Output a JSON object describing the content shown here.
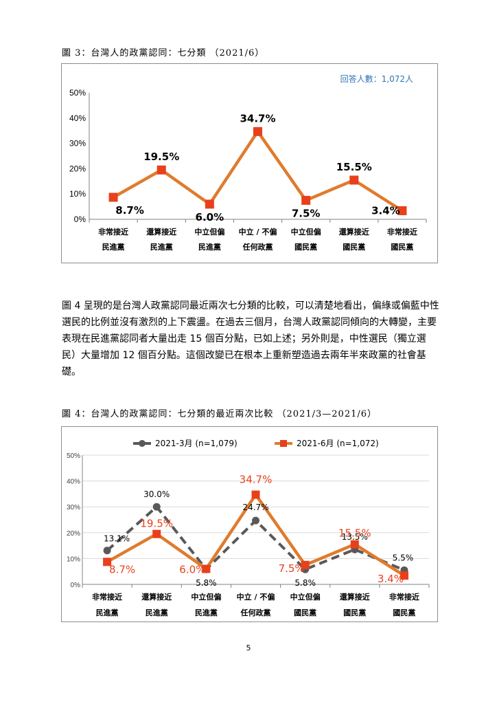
{
  "figure3": {
    "caption": "圖 3：台灣人的政黨認同：七分類 （2021/6）",
    "respondents": "回答人數：1,072人"
  },
  "figure4": {
    "caption": "圖 4：台灣人的政黨認同：七分類的最近兩次比較 （2021/3—2021/6）"
  },
  "paragraph": "圖 4 呈現的是台灣人政黨認同最近兩次七分類的比較，可以清楚地看出，偏綠或偏藍中性選民的比例並沒有激烈的上下震盪。在過去三個月，台灣人政黨認同傾向的大轉變，主要表現在民進黨認同者大量出走 15 個百分點，已如上述；另外則是，中性選民（獨立選民）大量增加 12 個百分點。這個改變已在根本上重新塑造過去兩年半來政黨的社會基礎。",
  "page_number": "5",
  "chart_data": [
    {
      "type": "line",
      "categories": [
        [
          "非常接近",
          "民進黨"
        ],
        [
          "還算接近",
          "民進黨"
        ],
        [
          "中立但偏",
          "民進黨"
        ],
        [
          "中立 / 不偏",
          "任何政黨"
        ],
        [
          "中立但偏",
          "國民黨"
        ],
        [
          "還算接近",
          "國民黨"
        ],
        [
          "非常接近",
          "國民黨"
        ]
      ],
      "yticks": [
        "0%",
        "10%",
        "20%",
        "30%",
        "40%",
        "50%"
      ],
      "ylim": [
        0,
        50
      ],
      "series": [
        {
          "values": [
            8.7,
            19.5,
            6.0,
            34.7,
            7.5,
            15.5,
            3.4
          ],
          "labels": [
            "8.7%",
            "19.5%",
            "6.0%",
            "34.7%",
            "7.5%",
            "15.5%",
            "3.4%"
          ],
          "color": "#E07B2C",
          "marker_color": "#E8401C"
        }
      ]
    },
    {
      "type": "line",
      "categories": [
        [
          "非常接近",
          "民進黨"
        ],
        [
          "還算接近",
          "民進黨"
        ],
        [
          "中立但偏",
          "民進黨"
        ],
        [
          "中立 / 不偏",
          "任何政黨"
        ],
        [
          "中立但偏",
          "國民黨"
        ],
        [
          "還算接近",
          "國民黨"
        ],
        [
          "非常接近",
          "國民黨"
        ]
      ],
      "yticks": [
        "0%",
        "10%",
        "20%",
        "30%",
        "40%",
        "50%"
      ],
      "ylim": [
        0,
        50
      ],
      "legend": "top",
      "series": [
        {
          "name": "2021-3月 (n=1,079)",
          "values": [
            13.1,
            30.0,
            5.8,
            24.7,
            5.8,
            13.5,
            5.5
          ],
          "labels": [
            "13.1%",
            "30.0%",
            "5.8%",
            "24.7%",
            "5.8%",
            "13.5%",
            "5.5%"
          ],
          "color": "#595959",
          "dashed": true
        },
        {
          "name": "2021-6月 (n=1,072)",
          "values": [
            8.7,
            19.5,
            6.0,
            34.7,
            7.5,
            15.5,
            3.4
          ],
          "labels": [
            "8.7%",
            "19.5%",
            "6.0%",
            "34.7%",
            "7.5%",
            "15.5%",
            "3.4%"
          ],
          "color": "#E07B2C",
          "marker_color": "#E8401C"
        }
      ]
    }
  ]
}
